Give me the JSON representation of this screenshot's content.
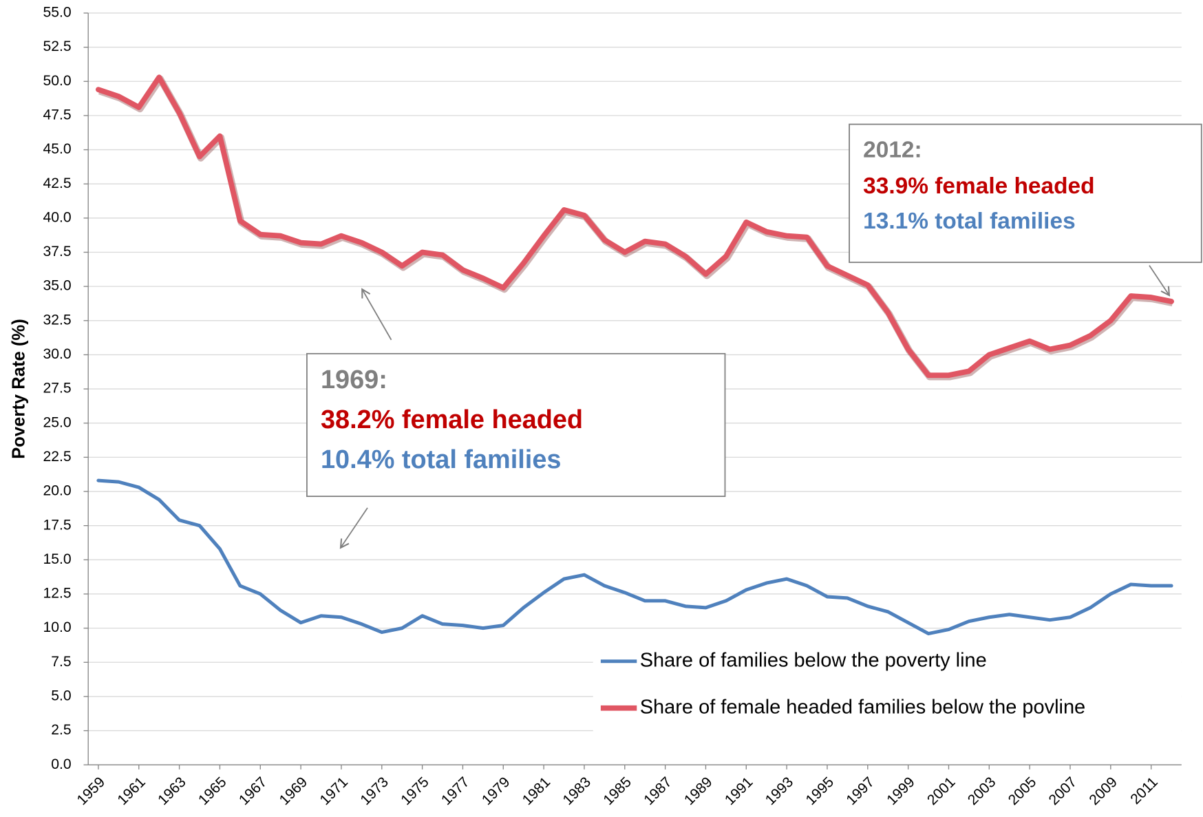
{
  "chart_data": {
    "type": "line",
    "y_label": "Poverty Rate (%)",
    "x": [
      1959,
      1960,
      1961,
      1962,
      1963,
      1964,
      1965,
      1966,
      1967,
      1968,
      1969,
      1970,
      1971,
      1972,
      1973,
      1974,
      1975,
      1976,
      1977,
      1978,
      1979,
      1980,
      1981,
      1982,
      1983,
      1984,
      1985,
      1986,
      1987,
      1988,
      1989,
      1990,
      1991,
      1992,
      1993,
      1994,
      1995,
      1996,
      1997,
      1998,
      1999,
      2000,
      2001,
      2002,
      2003,
      2004,
      2005,
      2006,
      2007,
      2008,
      2009,
      2010,
      2011,
      2012
    ],
    "xlim": [
      1958.5,
      2012.5
    ],
    "xticks": [
      1959,
      1961,
      1963,
      1965,
      1967,
      1969,
      1971,
      1973,
      1975,
      1977,
      1979,
      1981,
      1983,
      1985,
      1987,
      1989,
      1991,
      1993,
      1995,
      1997,
      1999,
      2001,
      2003,
      2005,
      2007,
      2009,
      2011
    ],
    "ylim": [
      0,
      55
    ],
    "yticks": [
      {
        "value": 0,
        "label": "0.0"
      },
      {
        "value": 2.5,
        "label": "2.5"
      },
      {
        "value": 5,
        "label": "5.0"
      },
      {
        "value": 7.5,
        "label": "7.5"
      },
      {
        "value": 10,
        "label": "10.0"
      },
      {
        "value": 12.5,
        "label": "12.5"
      },
      {
        "value": 15,
        "label": "15.0"
      },
      {
        "value": 17.5,
        "label": "17.5"
      },
      {
        "value": 20,
        "label": "20.0"
      },
      {
        "value": 22.5,
        "label": "22.5"
      },
      {
        "value": 25,
        "label": "25.0"
      },
      {
        "value": 27.5,
        "label": "27.5"
      },
      {
        "value": 30,
        "label": "30.0"
      },
      {
        "value": 32.5,
        "label": "32.5"
      },
      {
        "value": 35,
        "label": "35.0"
      },
      {
        "value": 37.5,
        "label": "37.5"
      },
      {
        "value": 40,
        "label": "40.0"
      },
      {
        "value": 42.5,
        "label": "42.5"
      },
      {
        "value": 45,
        "label": "45.0"
      },
      {
        "value": 47.5,
        "label": "47.5"
      },
      {
        "value": 50,
        "label": "50.0"
      },
      {
        "value": 52.5,
        "label": "52.5"
      },
      {
        "value": 55,
        "label": "55.0"
      }
    ],
    "grid": true,
    "legend": "lower right",
    "series": [
      {
        "name": "Share of families below the poverty line",
        "color": "#4f81bd",
        "values": [
          20.8,
          20.7,
          20.3,
          19.4,
          17.9,
          17.5,
          15.8,
          13.1,
          12.5,
          11.3,
          10.4,
          10.9,
          10.8,
          10.3,
          9.7,
          10.0,
          10.9,
          10.3,
          10.2,
          10.0,
          10.2,
          11.5,
          12.6,
          13.6,
          13.9,
          13.1,
          12.6,
          12.0,
          12.0,
          11.6,
          11.5,
          12.0,
          12.8,
          13.3,
          13.6,
          13.1,
          12.3,
          12.2,
          11.6,
          11.2,
          10.4,
          9.6,
          9.9,
          10.5,
          10.8,
          11.0,
          10.8,
          10.6,
          10.8,
          11.5,
          12.5,
          13.2,
          13.1,
          13.1
        ]
      },
      {
        "name": "Share of female headed families below the povline",
        "color": "#e05663",
        "values": [
          49.4,
          48.9,
          48.1,
          50.3,
          47.7,
          44.5,
          46.0,
          39.8,
          38.8,
          38.7,
          38.2,
          38.1,
          38.7,
          38.2,
          37.5,
          36.5,
          37.5,
          37.3,
          36.2,
          35.6,
          34.9,
          36.7,
          38.7,
          40.6,
          40.2,
          38.4,
          37.5,
          38.3,
          38.1,
          37.2,
          35.9,
          37.2,
          39.7,
          39.0,
          38.7,
          38.6,
          36.5,
          35.8,
          35.1,
          33.1,
          30.4,
          28.5,
          28.5,
          28.8,
          30.0,
          30.5,
          31.0,
          30.4,
          30.7,
          31.4,
          32.5,
          34.3,
          34.2,
          33.9
        ]
      }
    ],
    "annotations": [
      {
        "title": "1969:",
        "lines": [
          "38.2%  female headed",
          "10.4%  total families"
        ]
      },
      {
        "title": "2012:",
        "lines": [
          "33.9%  female headed",
          "13.1%  total families"
        ]
      }
    ]
  }
}
